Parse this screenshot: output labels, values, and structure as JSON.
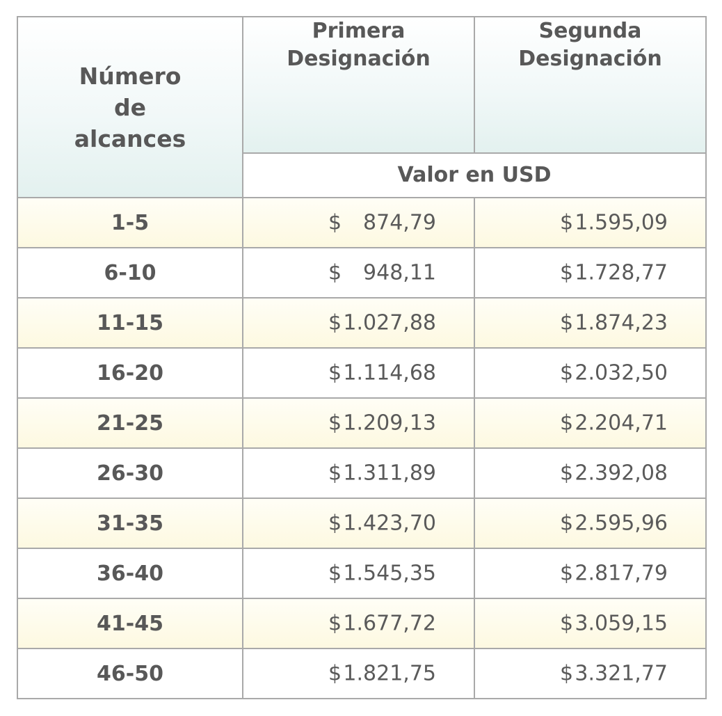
{
  "header": {
    "range_label_lines": [
      "Número",
      "de",
      "alcances"
    ],
    "first_label_lines": [
      "Primera",
      "Designación"
    ],
    "second_label_lines": [
      "Segunda",
      "Designación"
    ],
    "unit_label": "Valor en USD"
  },
  "currency_symbol": "$",
  "rows": [
    {
      "range": "1-5",
      "first": "874,79",
      "second": "1.595,09"
    },
    {
      "range": "6-10",
      "first": "948,11",
      "second": "1.728,77"
    },
    {
      "range": "11-15",
      "first": "1.027,88",
      "second": "1.874,23"
    },
    {
      "range": "16-20",
      "first": "1.114,68",
      "second": "2.032,50"
    },
    {
      "range": "21-25",
      "first": "1.209,13",
      "second": "2.204,71"
    },
    {
      "range": "26-30",
      "first": "1.311,89",
      "second": "2.392,08"
    },
    {
      "range": "31-35",
      "first": "1.423,70",
      "second": "2.595,96"
    },
    {
      "range": "36-40",
      "first": "1.545,35",
      "second": "2.817,79"
    },
    {
      "range": "41-45",
      "first": "1.677,72",
      "second": "3.059,15"
    },
    {
      "range": "46-50",
      "first": "1.821,75",
      "second": "3.321,77"
    }
  ],
  "colors": {
    "border": "#a9a9a9",
    "text": "#585858",
    "header_tint": "#e3f1ef",
    "row_tint": "#fdf9e1"
  }
}
